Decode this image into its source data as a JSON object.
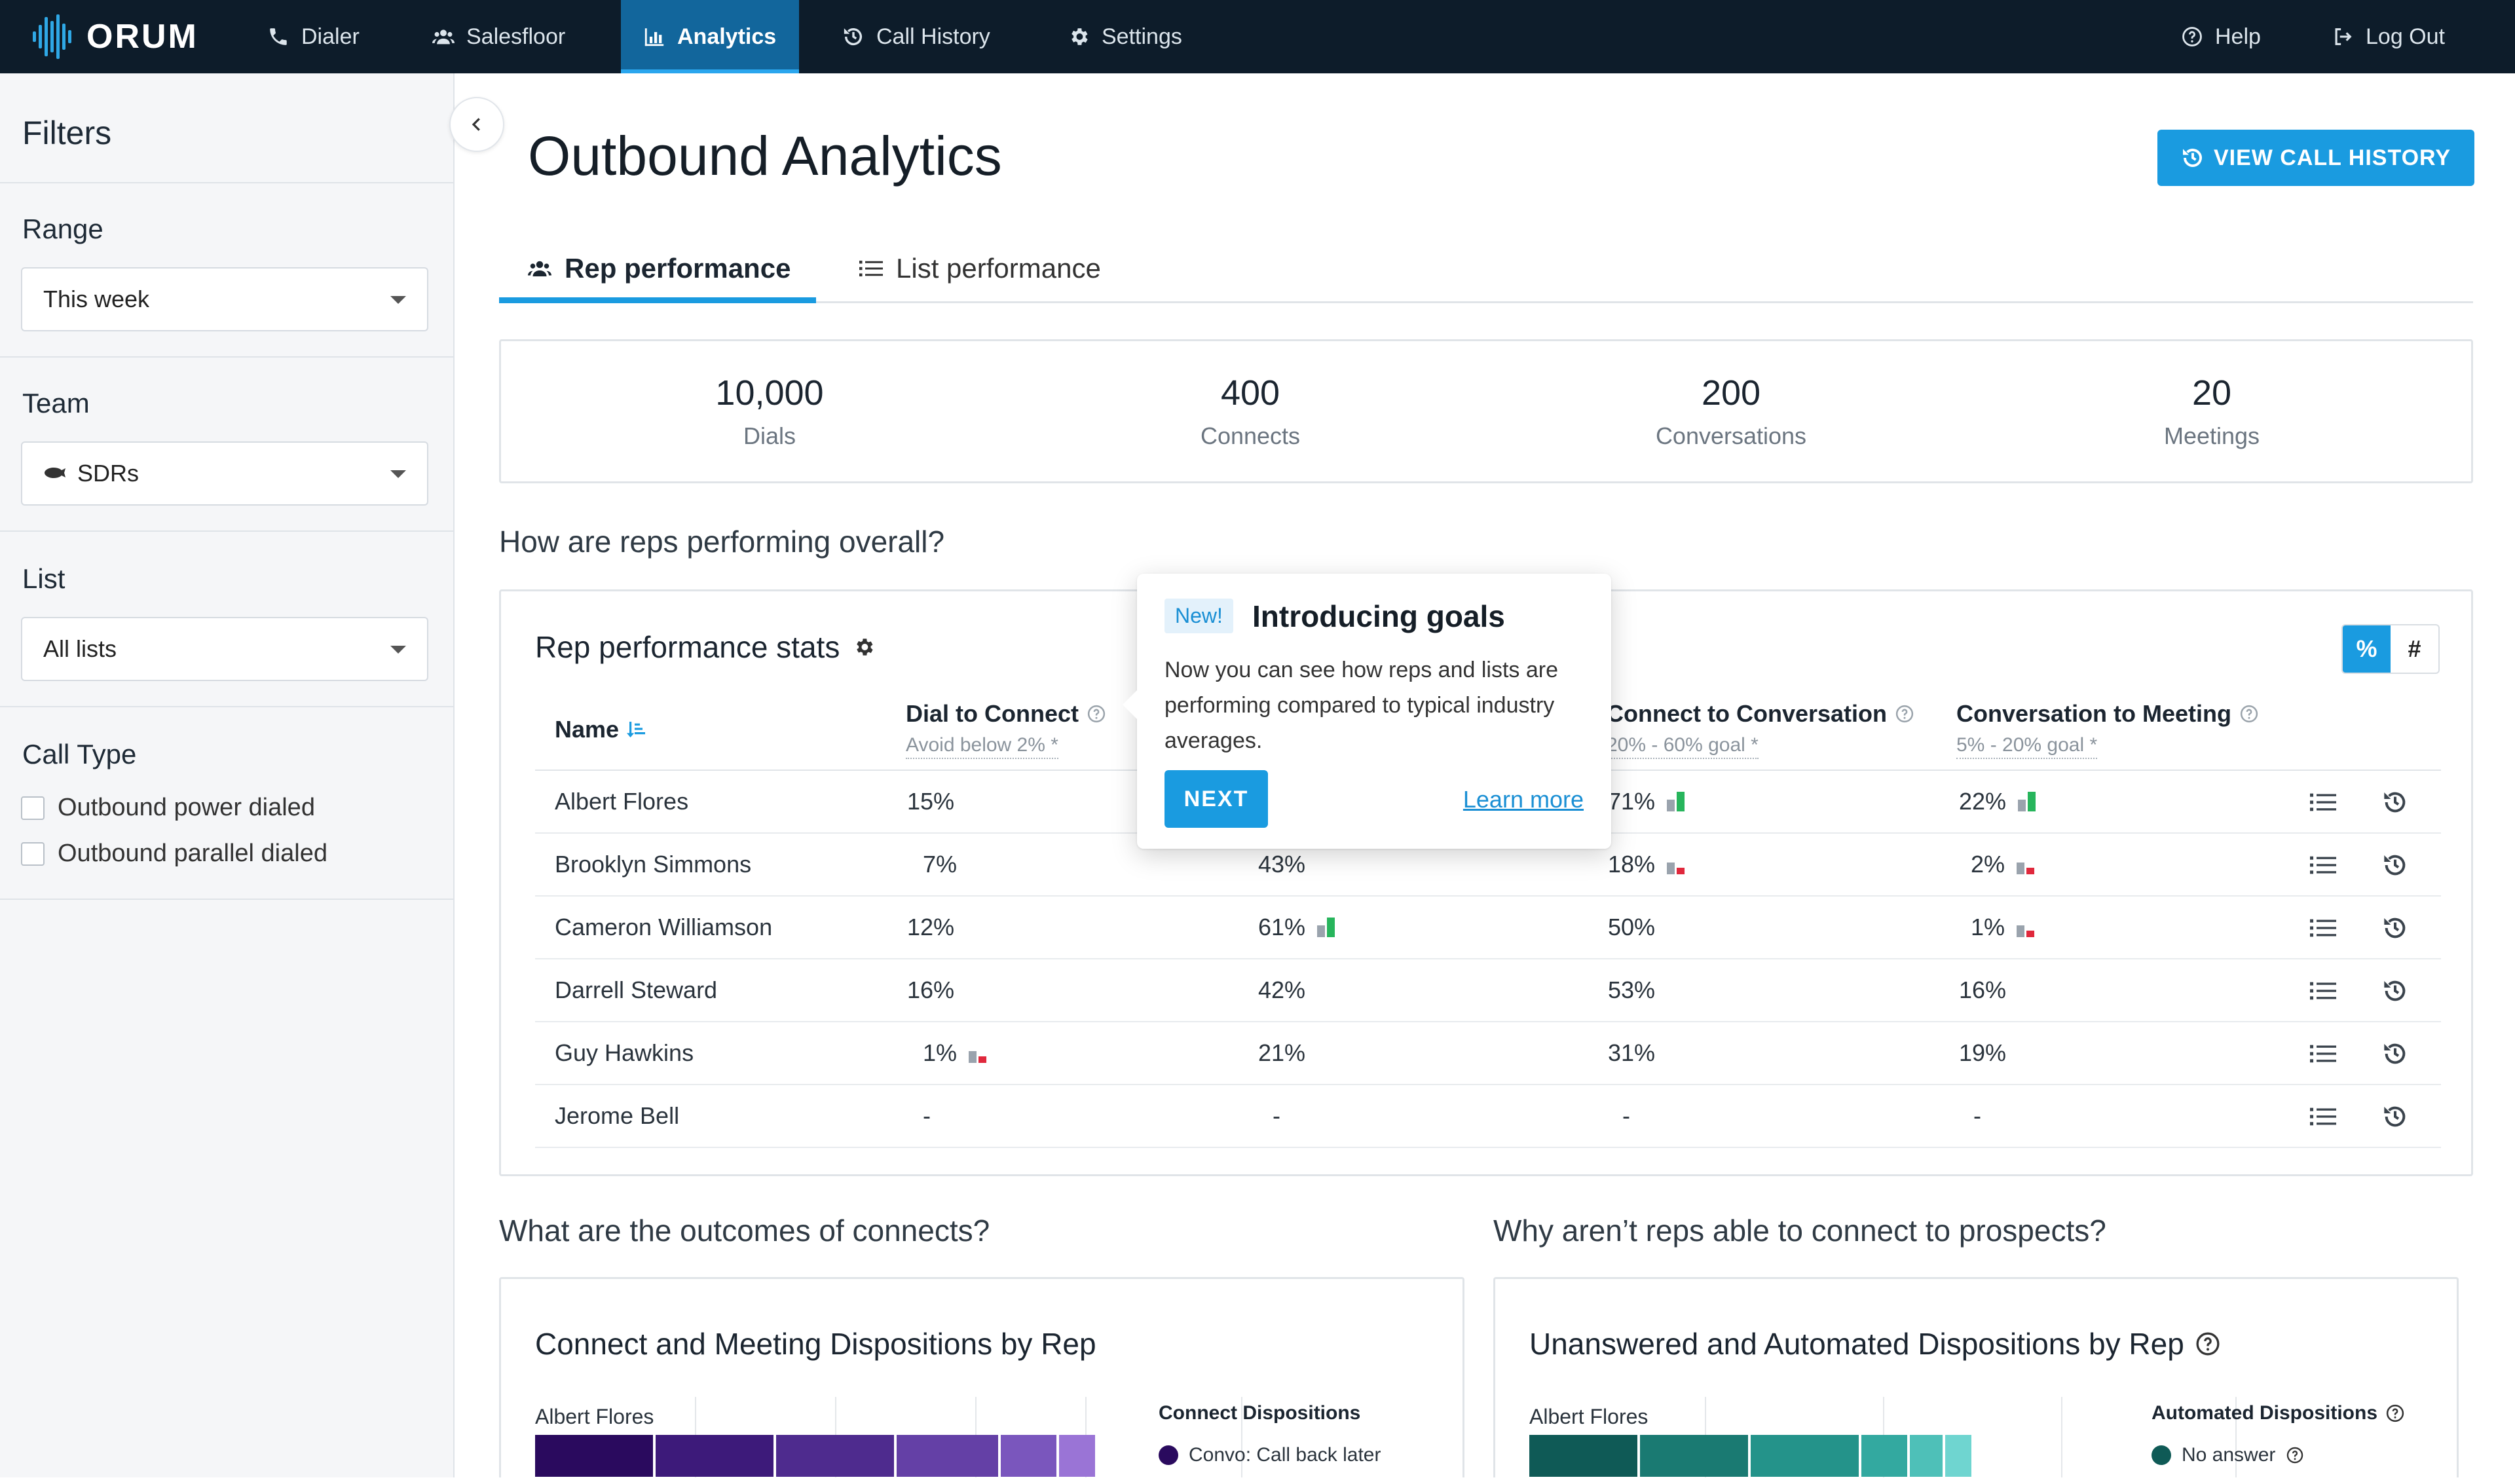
{
  "app": {
    "name": "ORUM"
  },
  "nav": {
    "dialer": "Dialer",
    "salesfloor": "Salesfloor",
    "analytics": "Analytics",
    "call_history": "Call History",
    "settings": "Settings",
    "help": "Help",
    "logout": "Log Out"
  },
  "sidebar": {
    "title": "Filters",
    "range_label": "Range",
    "range_value": "This week",
    "team_label": "Team",
    "team_value": "SDRs",
    "list_label": "List",
    "list_value": "All lists",
    "call_type_label": "Call Type",
    "call_types": [
      "Outbound power dialed",
      "Outbound parallel dialed"
    ]
  },
  "page": {
    "title": "Outbound Analytics",
    "view_button": "VIEW CALL HISTORY",
    "tabs": [
      "Rep performance",
      "List performance"
    ]
  },
  "metrics": [
    {
      "value": "10,000",
      "label": "Dials"
    },
    {
      "value": "400",
      "label": "Connects"
    },
    {
      "value": "200",
      "label": "Conversations"
    },
    {
      "value": "20",
      "label": "Meetings"
    }
  ],
  "questions": {
    "overall": "How are reps performing overall?",
    "outcomes": "What are the outcomes of connects?",
    "why": "Why aren’t reps able to connect to prospects?"
  },
  "stats": {
    "title": "Rep performance stats",
    "toggle_percent": "%",
    "toggle_count": "#",
    "columns": {
      "name": "Name",
      "dial_connect": "Dial to Connect",
      "dial_connect_sub": "Avoid below 2% *",
      "connect_convo": "Connect to Conversation",
      "connect_convo_sub": "20% - 60% goal *",
      "convo_meeting": "Conversation to Meeting",
      "convo_meeting_sub": "5% - 20% goal *"
    },
    "rows": [
      {
        "name": "Albert Flores",
        "c1": "15%",
        "c2": "",
        "c3": "71%",
        "c4": "22%"
      },
      {
        "name": "Brooklyn Simmons",
        "c1": "7%",
        "c2": "43%",
        "c3": "18%",
        "c4": "2%"
      },
      {
        "name": "Cameron Williamson",
        "c1": "12%",
        "c2": "61%",
        "c3": "50%",
        "c4": "1%"
      },
      {
        "name": "Darrell Steward",
        "c1": "16%",
        "c2": "42%",
        "c3": "53%",
        "c4": "16%"
      },
      {
        "name": "Guy Hawkins",
        "c1": "1%",
        "c2": "21%",
        "c3": "31%",
        "c4": "19%"
      },
      {
        "name": "Jerome Bell",
        "c1": "-",
        "c2": "-",
        "c3": "-",
        "c4": "-"
      }
    ]
  },
  "popover": {
    "badge": "New!",
    "title": "Introducing goals",
    "body": "Now you can see how reps and lists are performing compared to typical industry averages.",
    "next": "NEXT",
    "learn_more": "Learn more"
  },
  "connect_card": {
    "title": "Connect and Meeting Dispositions by Rep",
    "rep": "Albert Flores",
    "legend_title": "Connect Dispositions",
    "legend_item": "Convo: Call back later",
    "colors": [
      "#2a0a5e",
      "#3d1a7a",
      "#4e2b8e",
      "#6440a6",
      "#7a56bd",
      "#9a74d6"
    ],
    "values": [
      72,
      72,
      72,
      62,
      34,
      22
    ]
  },
  "unanswered_card": {
    "title": "Unanswered and Automated Dispositions by Rep",
    "rep": "Albert Flores",
    "legend_title": "Automated Dispositions",
    "legend_item": "No answer",
    "colors": [
      "#0f5a56",
      "#1a7a72",
      "#24938a",
      "#33a9a0",
      "#4ec0b8",
      "#6fd5d0"
    ],
    "values": [
      66,
      66,
      66,
      28,
      20,
      16
    ]
  },
  "accent": "#1a9be0"
}
